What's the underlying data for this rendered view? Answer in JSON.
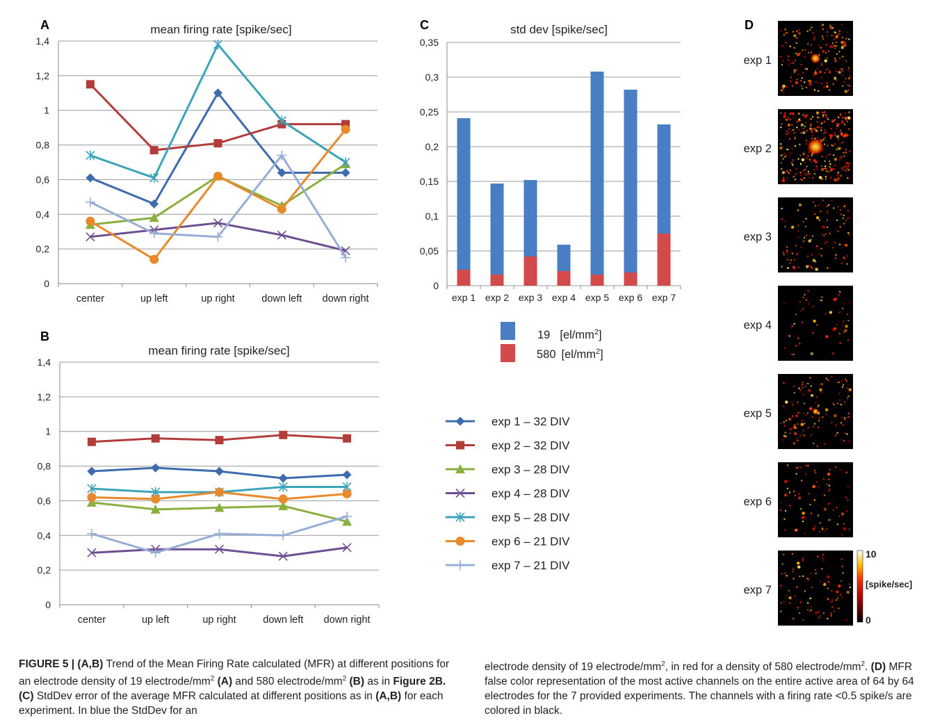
{
  "panels": {
    "A": "A",
    "B": "B",
    "C": "C",
    "D": "D"
  },
  "chart_data": [
    {
      "id": "A",
      "type": "line",
      "title": "mean firing rate [spike/sec]",
      "categories": [
        "center",
        "up left",
        "up right",
        "down left",
        "down right"
      ],
      "ylim": [
        0,
        1.4
      ],
      "yticks": [
        "0",
        "0,2",
        "0,4",
        "0,6",
        "0,8",
        "1",
        "1,2",
        "1,4"
      ],
      "grid": true,
      "series": [
        {
          "name": "exp 1 – 32 DIV",
          "color": "#3D6BAE",
          "marker": "diamond",
          "values": [
            0.61,
            0.46,
            1.1,
            0.64,
            0.64
          ]
        },
        {
          "name": "exp 2 – 32 DIV",
          "color": "#B23C3A",
          "marker": "square",
          "values": [
            1.15,
            0.77,
            0.81,
            0.92,
            0.92
          ]
        },
        {
          "name": "exp 3 – 28 DIV",
          "color": "#8BAF3E",
          "marker": "triangle",
          "values": [
            0.34,
            0.38,
            0.62,
            0.45,
            0.69
          ]
        },
        {
          "name": "exp 4 – 28 DIV",
          "color": "#6E4E93",
          "marker": "x",
          "values": [
            0.27,
            0.31,
            0.35,
            0.28,
            0.19
          ]
        },
        {
          "name": "exp 5 – 28 DIV",
          "color": "#3CA3B8",
          "marker": "star",
          "values": [
            0.74,
            0.61,
            1.38,
            0.94,
            0.7
          ]
        },
        {
          "name": "exp 6 – 21 DIV",
          "color": "#E8892B",
          "marker": "circle",
          "values": [
            0.36,
            0.14,
            0.62,
            0.43,
            0.89
          ]
        },
        {
          "name": "exp 7 – 21 DIV",
          "color": "#96ADD6",
          "marker": "plus",
          "values": [
            0.47,
            0.29,
            0.27,
            0.74,
            0.15
          ]
        }
      ]
    },
    {
      "id": "B",
      "type": "line",
      "title": "mean firing rate [spike/sec]",
      "categories": [
        "center",
        "up left",
        "up right",
        "down left",
        "down right"
      ],
      "ylim": [
        0,
        1.4
      ],
      "yticks": [
        "0",
        "0,2",
        "0,4",
        "0,6",
        "0,8",
        "1",
        "1,2",
        "1,4"
      ],
      "grid": true,
      "series": [
        {
          "name": "exp 1 – 32 DIV",
          "color": "#3D6BAE",
          "marker": "diamond",
          "values": [
            0.77,
            0.79,
            0.77,
            0.73,
            0.75
          ]
        },
        {
          "name": "exp 2 – 32 DIV",
          "color": "#B23C3A",
          "marker": "square",
          "values": [
            0.94,
            0.96,
            0.95,
            0.98,
            0.96
          ]
        },
        {
          "name": "exp 3 – 28 DIV",
          "color": "#8BAF3E",
          "marker": "triangle",
          "values": [
            0.59,
            0.55,
            0.56,
            0.57,
            0.48
          ]
        },
        {
          "name": "exp 4 – 28 DIV",
          "color": "#6E4E93",
          "marker": "x",
          "values": [
            0.3,
            0.32,
            0.32,
            0.28,
            0.33
          ]
        },
        {
          "name": "exp 5 – 28 DIV",
          "color": "#3CA3B8",
          "marker": "star",
          "values": [
            0.67,
            0.65,
            0.65,
            0.68,
            0.68
          ]
        },
        {
          "name": "exp 6 – 21 DIV",
          "color": "#E8892B",
          "marker": "circle",
          "values": [
            0.62,
            0.61,
            0.65,
            0.61,
            0.64
          ]
        },
        {
          "name": "exp 7 – 21 DIV",
          "color": "#96ADD6",
          "marker": "plus",
          "values": [
            0.41,
            0.3,
            0.41,
            0.4,
            0.51
          ]
        }
      ]
    },
    {
      "id": "C",
      "type": "bar",
      "title": "std dev [spike/sec]",
      "categories": [
        "exp 1",
        "exp 2",
        "exp 3",
        "exp 4",
        "exp 5",
        "exp 6",
        "exp 7"
      ],
      "ylim": [
        0,
        0.35
      ],
      "yticks": [
        "0",
        "0,05",
        "0,1",
        "0,15",
        "0,2",
        "0,25",
        "0,3",
        "0,35"
      ],
      "grid": true,
      "series": [
        {
          "name": "19 [el/mm2]",
          "color": "#4A7EC4",
          "values": [
            0.241,
            0.147,
            0.152,
            0.059,
            0.308,
            0.282,
            0.232
          ]
        },
        {
          "name": "580 [el/mm2]",
          "color": "#D24A4A",
          "values": [
            0.023,
            0.016,
            0.042,
            0.021,
            0.016,
            0.019,
            0.075
          ]
        }
      ]
    }
  ],
  "legend_lines": [
    {
      "label": "exp 1 – 32 DIV"
    },
    {
      "label": "exp 2 – 32 DIV"
    },
    {
      "label": "exp 3 – 28 DIV"
    },
    {
      "label": "exp 4 – 28 DIV"
    },
    {
      "label": "exp 5 – 28 DIV"
    },
    {
      "label": "exp 6 – 21 DIV"
    },
    {
      "label": "exp 7 – 21 DIV"
    }
  ],
  "legend_bars": [
    {
      "value": "19",
      "unit": "[el/mm",
      "sup": "2",
      "close": "]",
      "color": "#4A7EC4"
    },
    {
      "value": "580",
      "unit": "[el/mm",
      "sup": "2",
      "close": "]",
      "color": "#D24A4A"
    }
  ],
  "heatmaps": {
    "labels": [
      "exp 1",
      "exp 2",
      "exp 3",
      "exp 4",
      "exp 5",
      "exp 6",
      "exp 7"
    ],
    "activity": [
      0.55,
      0.9,
      0.3,
      0.12,
      0.35,
      0.2,
      0.22
    ],
    "colorbar": {
      "max": "10",
      "min": "0",
      "unit": "[spike/sec]"
    }
  },
  "caption": {
    "left": {
      "lead": "FIGURE 5 | (A,B)",
      "t1": " Trend of the Mean Firing Rate calculated (MFR) at different positions for an electrode density of 19 electrode/mm",
      "s1": "2",
      "r1": " (A)",
      "t2": " and 580 electrode/mm",
      "s2": "2",
      "r2": " (B)",
      "t3": " as in ",
      "r3": "Figure 2B.",
      "r4": " (C)",
      "t4": " StdDev error of the average MFR calculated at different positions as in ",
      "r5": "(A,B)",
      "t5": " for each experiment. In blue the StdDev for an"
    },
    "right": {
      "t1": "electrode density of 19 electrode/mm",
      "s1": "2",
      "t2": ", in red for a density of 580 electrode/mm",
      "s2": "2",
      "t3": ". ",
      "r1": "(D)",
      "t4": " MFR false color representation of the most active channels on the entire active area of 64 by 64 electrodes for the 7 provided experiments. The channels with a firing rate <0.5 spike/s are colored in black."
    }
  }
}
